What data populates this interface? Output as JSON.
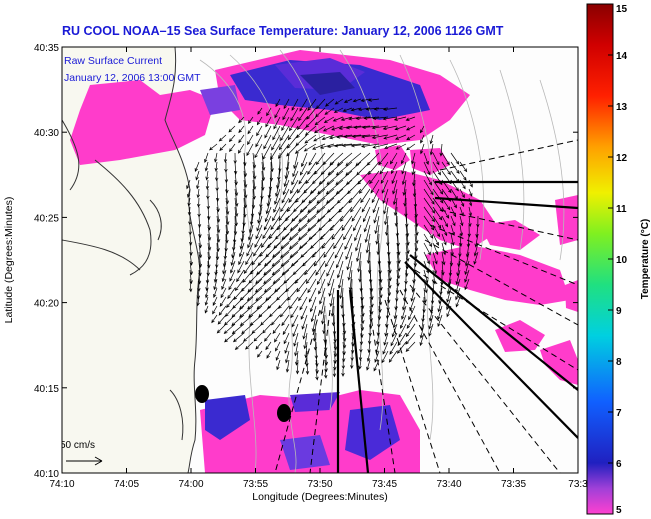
{
  "chart_data": {
    "type": "heatmap",
    "title": "RU COOL  NOAA–15  Sea Surface Temperature:  January 12, 2006 1126 GMT",
    "legend_lines": [
      "Raw Surface Current",
      "January 12, 2006 13:00 GMT"
    ],
    "xlabel": "Longitude (Degrees:Minutes)",
    "ylabel": "Latitude (Degrees:Minutes)",
    "x_tick_labels": [
      "74:10",
      "74:05",
      "74:00",
      "73:55",
      "73:50",
      "73:45",
      "73:40",
      "73:35",
      "73:3"
    ],
    "y_tick_labels": [
      "40:10",
      "40:15",
      "40:20",
      "40:25",
      "40:30",
      "40:35"
    ],
    "xlim_minutes_west": [
      4450,
      4410
    ],
    "ylim_minutes_north": [
      2410,
      2435
    ],
    "colorbar": {
      "label": "Temperature (°C)",
      "range": [
        5,
        15
      ],
      "tick_labels": [
        "5",
        "6",
        "7",
        "8",
        "9",
        "10",
        "11",
        "12",
        "13",
        "14",
        "15"
      ]
    },
    "scale_vector_label": "50 cm/s",
    "colors": {
      "sst_warm": "#ff3ccb",
      "sst_cold": "#3a2ad0",
      "land": "#f8f8f0",
      "title": "#1a1ad6"
    }
  }
}
